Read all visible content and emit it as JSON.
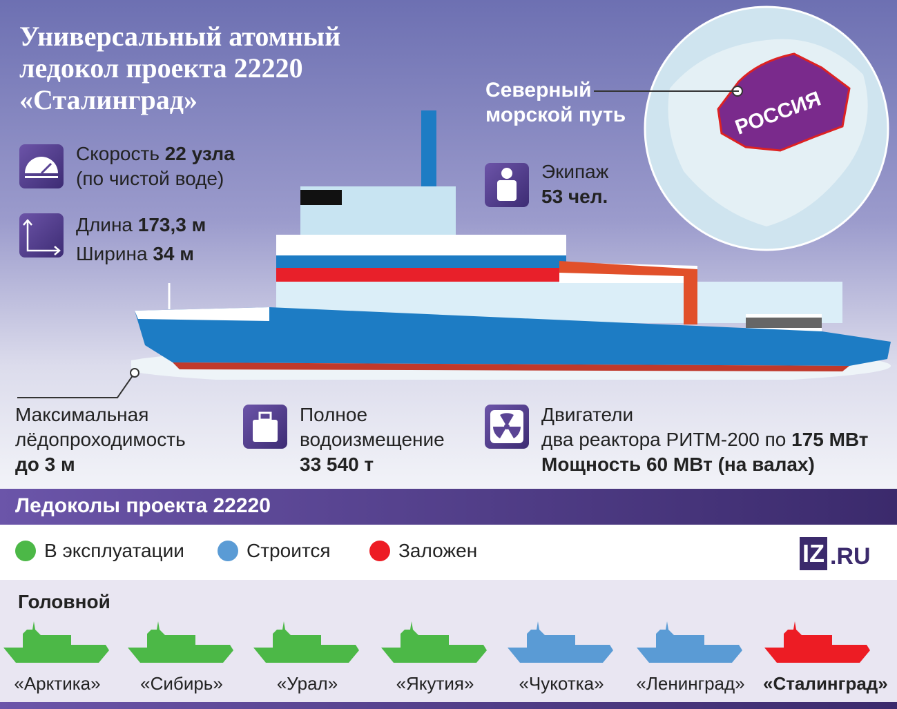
{
  "title": "Универсальный атомный ледокол проекта 22220 «Сталинград»",
  "route_label_1": "Северный",
  "route_label_2": "морской путь",
  "globe_label": "РОССИЯ",
  "features": {
    "speed": {
      "icon": "speedometer-icon",
      "pre": "Скорость ",
      "val": "22 узла",
      "line2": "(по чистой воде)"
    },
    "size": {
      "icon": "dimensions-arrows-icon",
      "len_pre": "Длина ",
      "len": "173,3 м",
      "wid_pre": "Ширина ",
      "wid": "34 м"
    },
    "crew": {
      "icon": "person-icon",
      "label": "Экипаж",
      "val": "53 чел."
    },
    "ice": {
      "l1": "Максимальная",
      "l2": "лёдопроходимость",
      "val": "до 3 м"
    },
    "displacement": {
      "icon": "weight-icon",
      "l1": "Полное",
      "l2": "водоизмещение",
      "val": "33 540 т"
    },
    "engines": {
      "icon": "radiation-icon",
      "l1": "Двигатели",
      "l2": "два реактора РИТМ-200 по ",
      "l2b": "175 МВт",
      "l3": "Мощность 60 МВт (на валах)"
    }
  },
  "section_title": "Ледоколы проекта 22220",
  "legend": [
    {
      "label": "В эксплуатации",
      "color": "#4cb847"
    },
    {
      "label": "Строится",
      "color": "#5a9bd5"
    },
    {
      "label": "Заложен",
      "color": "#ed1c24"
    }
  ],
  "logo": "IZ.RU",
  "lead_label": "Головной",
  "ships": [
    {
      "name": "«Арктика»",
      "status": "В эксплуатации"
    },
    {
      "name": "«Сибирь»",
      "status": "В эксплуатации"
    },
    {
      "name": "«Урал»",
      "status": "В эксплуатации"
    },
    {
      "name": "«Якутия»",
      "status": "В эксплуатации"
    },
    {
      "name": "«Чукотка»",
      "status": "Строится"
    },
    {
      "name": "«Ленинград»",
      "status": "Строится"
    },
    {
      "name": "«Сталинград»",
      "status": "Заложен"
    }
  ]
}
